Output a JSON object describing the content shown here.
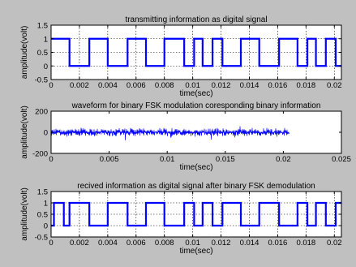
{
  "figure": {
    "background": "#c0c0c0",
    "axes_bg": "#ffffff",
    "line_color": "#0000ff"
  },
  "chart_data": [
    {
      "type": "line",
      "title": "transmitting information as digital signal",
      "xlabel": "time(sec)",
      "ylabel": "amplitude(volt)",
      "xlim": [
        0,
        0.0205
      ],
      "ylim": [
        -0.5,
        1.5
      ],
      "xticks": [
        0,
        0.002,
        0.004,
        0.006,
        0.008,
        0.01,
        0.012,
        0.014,
        0.016,
        0.018,
        0.02
      ],
      "xtick_labels": [
        "0",
        "0.002",
        "0.004",
        "0.006",
        "0.008",
        "0.01",
        "0.012",
        "0.014",
        "0.016",
        "0.018",
        "0.02"
      ],
      "yticks": [
        -0.5,
        0,
        0.5,
        1,
        1.5
      ],
      "ytick_labels": [
        "-0.5",
        "0",
        "0.5",
        "1",
        "1.5"
      ],
      "grid": true,
      "series": [
        {
          "kind": "step",
          "x": [
            0,
            0.0013,
            0.0027,
            0.004,
            0.0054,
            0.0067,
            0.008,
            0.0094,
            0.0101,
            0.0107,
            0.0114,
            0.0121,
            0.0134,
            0.0147,
            0.0161,
            0.0174,
            0.0181,
            0.0187,
            0.0194,
            0.0201
          ],
          "y": [
            1,
            0,
            1,
            0,
            1,
            0,
            1,
            0,
            1,
            0,
            1,
            0,
            1,
            0,
            1,
            0,
            1,
            0,
            1,
            0
          ]
        }
      ]
    },
    {
      "type": "line",
      "title": "waveform for binary FSK modulation coresponding binary information",
      "xlabel": "time(sec)",
      "ylabel": "amplitude(volt)",
      "xlim": [
        0,
        0.025
      ],
      "ylim": [
        -200,
        200
      ],
      "xticks": [
        0,
        0.005,
        0.01,
        0.015,
        0.02,
        0.025
      ],
      "xtick_labels": [
        "0",
        "0.005",
        "0.01",
        "0.015",
        "0.02",
        "0.025"
      ],
      "yticks": [
        -200,
        0,
        200
      ],
      "ytick_labels": [
        "-200",
        "0",
        "200"
      ],
      "grid": false,
      "series": [
        {
          "kind": "noise-band",
          "x_range": [
            0,
            0.0205
          ],
          "amplitude": 45,
          "peak_amplitude": 80
        }
      ]
    },
    {
      "type": "line",
      "title": "recived information as digital signal after binary FSK demodulation",
      "xlabel": "time(sec)",
      "ylabel": "amplitude(volt)",
      "xlim": [
        0,
        0.0205
      ],
      "ylim": [
        -0.5,
        1.5
      ],
      "xticks": [
        0,
        0.002,
        0.004,
        0.006,
        0.008,
        0.01,
        0.012,
        0.014,
        0.016,
        0.018,
        0.02
      ],
      "xtick_labels": [
        "0",
        "0.002",
        "0.004",
        "0.006",
        "0.008",
        "0.01",
        "0.012",
        "0.014",
        "0.016",
        "0.018",
        "0.02"
      ],
      "yticks": [
        -0.5,
        0,
        0.5,
        1,
        1.5
      ],
      "ytick_labels": [
        "-0.5",
        "0",
        "0.5",
        "1",
        "1.5"
      ],
      "grid": true,
      "series": [
        {
          "kind": "step",
          "x": [
            0,
            0.0002,
            0.0009,
            0.0013,
            0.0027,
            0.004,
            0.0054,
            0.0067,
            0.008,
            0.0094,
            0.0101,
            0.0107,
            0.0114,
            0.0121,
            0.0134,
            0.0147,
            0.0161,
            0.0174,
            0.0181,
            0.0187,
            0.0194,
            0.0201
          ],
          "y": [
            0,
            1,
            0,
            1,
            0,
            1,
            0,
            1,
            0,
            1,
            0,
            1,
            0,
            1,
            0,
            1,
            0,
            1,
            0,
            1,
            0,
            1
          ]
        }
      ]
    }
  ]
}
